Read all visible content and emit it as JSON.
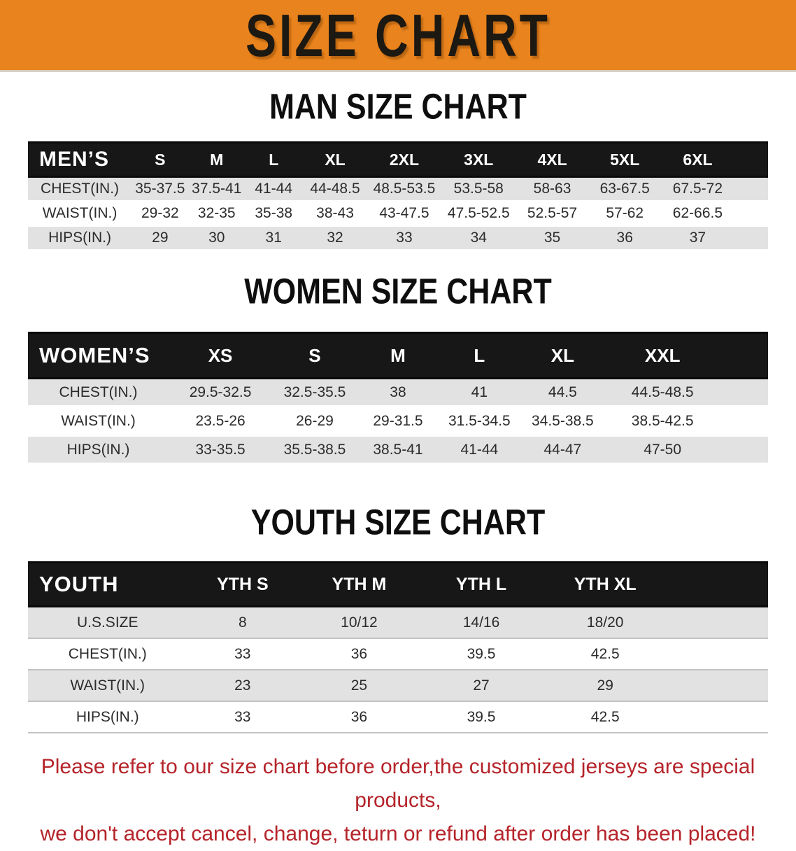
{
  "banner": {
    "title": "SIZE CHART",
    "bg_color": "#e8831d"
  },
  "colors": {
    "banner_bg": "#e8831d",
    "table_header_bg": "#171717",
    "row_alt_gray": "#e2e2e2",
    "footer_red": "#b5242a"
  },
  "man_section": {
    "heading": "MAN SIZE CHART",
    "table": {
      "label_header": "MEN’S",
      "size_headers": [
        "S",
        "M",
        "L",
        "XL",
        "2XL",
        "3XL",
        "4XL",
        "5XL",
        "6XL"
      ],
      "rows": [
        {
          "label": "CHEST(IN.)",
          "values": [
            "35-37.5",
            "37.5-41",
            "41-44",
            "44-48.5",
            "48.5-53.5",
            "53.5-58",
            "58-63",
            "63-67.5",
            "67.5-72"
          ]
        },
        {
          "label": "WAIST(IN.)",
          "values": [
            "29-32",
            "32-35",
            "35-38",
            "38-43",
            "43-47.5",
            "47.5-52.5",
            "52.5-57",
            "57-62",
            "62-66.5"
          ]
        },
        {
          "label": "HIPS(IN.)",
          "values": [
            "29",
            "30",
            "31",
            "32",
            "33",
            "34",
            "35",
            "36",
            "37"
          ]
        }
      ]
    }
  },
  "women_section": {
    "heading": "WOMEN SIZE CHART",
    "table": {
      "label_header": "WOMEN’S",
      "size_headers": [
        "XS",
        "S",
        "M",
        "L",
        "XL",
        "XXL"
      ],
      "rows": [
        {
          "label": "CHEST(IN.)",
          "values": [
            "29.5-32.5",
            "32.5-35.5",
            "38",
            "41",
            "44.5",
            "44.5-48.5"
          ]
        },
        {
          "label": "WAIST(IN.)",
          "values": [
            "23.5-26",
            "26-29",
            "29-31.5",
            "31.5-34.5",
            "34.5-38.5",
            "38.5-42.5"
          ]
        },
        {
          "label": "HIPS(IN.)",
          "values": [
            "33-35.5",
            "35.5-38.5",
            "38.5-41",
            "41-44",
            "44-47",
            "47-50"
          ]
        }
      ]
    }
  },
  "youth_section": {
    "heading": "YOUTH SIZE CHART",
    "table": {
      "label_header": "YOUTH",
      "size_headers": [
        "YTH S",
        "YTH M",
        "YTH L",
        "YTH XL"
      ],
      "rows": [
        {
          "label": "U.S.SIZE",
          "values": [
            "8",
            "10/12",
            "14/16",
            "18/20"
          ]
        },
        {
          "label": "CHEST(IN.)",
          "values": [
            "33",
            "36",
            "39.5",
            "42.5"
          ]
        },
        {
          "label": "WAIST(IN.)",
          "values": [
            "23",
            "25",
            "27",
            "29"
          ]
        },
        {
          "label": "HIPS(IN.)",
          "values": [
            "33",
            "36",
            "39.5",
            "42.5"
          ]
        }
      ]
    }
  },
  "footer": {
    "line1": "Please refer to our size chart before order,the customized jerseys are special products,",
    "line2": "we don't accept cancel, change, teturn or refund after order has been placed!"
  }
}
